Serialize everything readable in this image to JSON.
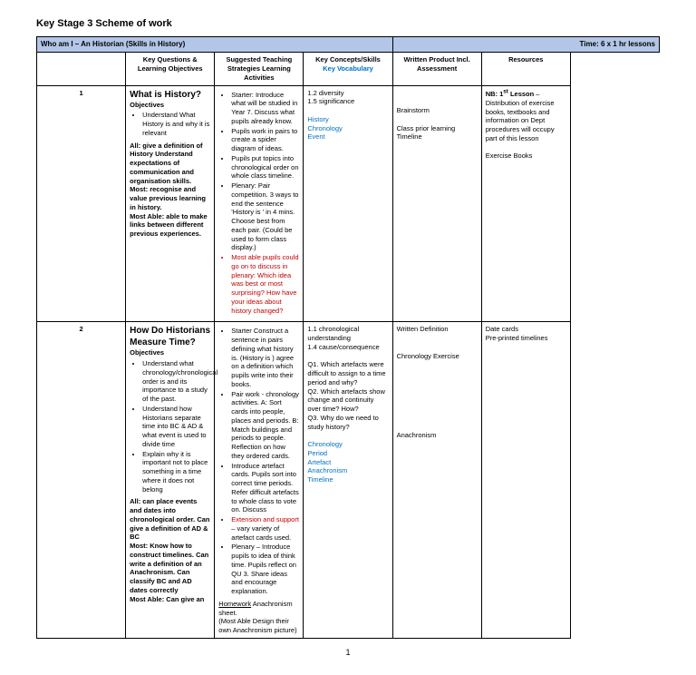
{
  "title": "Key Stage 3 Scheme of work",
  "header": {
    "left": "Who am I – An Historian (Skills in History)",
    "right": "Time: 6 x 1 hr lessons"
  },
  "cols": [
    "",
    "Key Questions & Learning Objectives",
    "Suggested Teaching Strategies Learning Activities",
    "Key Concepts/Skills",
    "Key Vocabulary",
    "Written Product Incl. Assessment",
    "Resources"
  ],
  "r1": {
    "n": "1",
    "q": "What is History?",
    "obj": "Objectives",
    "o1": "Understand What History is and why it is relevant",
    "all": "All: give a definition of History Understand expectations of communication and organisation skills.",
    "most": "Most:  recognise and value previous learning in history.",
    "ma": "Most Able:  able to make links between different previous experiences.",
    "s1": "Starter:  Introduce what will be studied in Year 7. Discuss what pupils already know.",
    "s2": "Pupils work in pairs to create a spider diagram of ideas.",
    "s3": "Pupils put topics into chronological order on whole class timeline.",
    "s4": "Plenary: Pair competition. 3 ways to end the sentence 'History is       ' in 4 mins. Choose best from each pair. (Could be used to form class display.)",
    "s5": "Most able pupils could go on to discuss in plenary: Which idea was best or most surprising? How have your ideas about history changed?",
    "c1": "1.2  diversity",
    "c2": "1.5  significance",
    "v1": "History",
    "v2": "Chronology",
    "v3": "Event",
    "w1": "Brainstorm",
    "w2": "Class  prior learning",
    "w3": "Timeline",
    "res": "NB: 1st Lesson – Distribution of exercise books, textbooks and information on Dept procedures will occupy part of this lesson",
    "res2": "Exercise Books"
  },
  "r2": {
    "n": "2",
    "q": "How Do Historians Measure Time?",
    "obj": "Objectives",
    "o1": "Understand what chronology/chronological order is and its importance to a study of the past.",
    "o2": "Understand how Historians separate time into BC & AD & what event is used to divide time",
    "o3": "Explain why it is important not to place something in a time where it does not belong",
    "all": "All: can place events and dates into chronological order.  Can give a definition of AD & BC",
    "most": "Most: Know how to construct timelines.  Can write a definition of an Anachronism. Can classify BC and AD dates correctly",
    "ma": "Most Able: Can give an",
    "s1": "Starter  Construct a sentence in pairs defining what history is. (History is       ) agree on a definition which pupils write into their books.",
    "s2": "Pair work - chronology activities. A: Sort cards into people, places and periods. B: Match buildings and periods to people. Reflection on how they ordered cards.",
    "s3": "Introduce artefact cards. Pupils sort into correct time periods. Refer difficult artefacts to whole class to vote on. Discuss",
    "s4": "Extension and support – vary variety of artefact cards used.",
    "s5": "Plenary – Introduce pupils to idea of think time. Pupils reflect on QU 3. Share ideas and encourage explanation.",
    "hw": "Homework Anachronism sheet.  (Most Able Design their own Anachronism picture)",
    "c1": "1.1   chronological understanding",
    "c2": "1.4 cause/consequence",
    "q1": "Q1. Which artefacts were difficult to assign to a time period and why?",
    "q2": "Q2. Which artefacts show change and continuity over time? How?",
    "q3": "Q3. Why do we need to study history?",
    "v1": "Chronology",
    "v2": "Period",
    "v3": "Artefact",
    "v4": "Anachronism",
    "v5": "Timeline",
    "w1": "Written Definition",
    "w2": "Chronology Exercise",
    "w3": "Anachronism",
    "res1": "Date cards",
    "res2": "Pre-printed timelines"
  },
  "page": "1"
}
